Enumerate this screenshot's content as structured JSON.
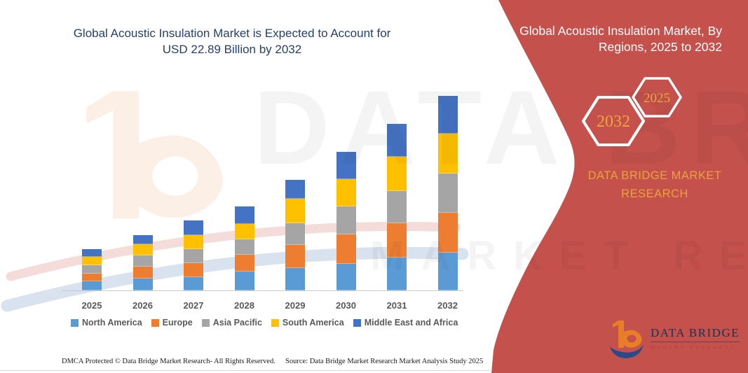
{
  "page": {
    "background": "#ffffff"
  },
  "chart": {
    "title_line1": "Global Acoustic Insulation Market is Expected to Account for",
    "title_line2": "USD 22.89 Billion by 2032",
    "title_color": "#26406C"
  },
  "chart_data": {
    "type": "bar",
    "stacked": true,
    "title": "Global Acoustic Insulation Market is Expected to Account for USD 22.89 Billion by 2032",
    "unit": "USD Billion",
    "xlabel": "",
    "ylabel": "",
    "grid": false,
    "axis_labels_shown": "x-only",
    "legend_position": "bottom",
    "categories": [
      "2025",
      "2026",
      "2027",
      "2028",
      "2029",
      "2030",
      "2031",
      "2032"
    ],
    "series": [
      {
        "name": "North America",
        "color": "#5B9BD5",
        "values": [
          1.04,
          1.4,
          1.57,
          2.23,
          2.64,
          3.11,
          3.88,
          4.49
        ]
      },
      {
        "name": "Europe",
        "color": "#ED7D31",
        "values": [
          0.96,
          1.4,
          1.63,
          2.01,
          2.75,
          3.44,
          3.99,
          4.68
        ]
      },
      {
        "name": "Asia Pacific",
        "color": "#A5A5A5",
        "values": [
          0.96,
          1.3,
          1.65,
          1.79,
          2.48,
          3.3,
          3.86,
          4.63
        ]
      },
      {
        "name": "South America",
        "color": "#FFC000",
        "values": [
          1.02,
          1.35,
          1.65,
          1.79,
          2.89,
          3.25,
          3.99,
          4.63
        ]
      },
      {
        "name": "Middle East and Africa",
        "color": "#4472C4",
        "values": [
          0.91,
          1.08,
          1.73,
          2.07,
          2.26,
          3.22,
          3.91,
          4.46
        ]
      }
    ],
    "totals": [
      4.89,
      6.53,
      8.23,
      9.89,
      13.02,
      16.32,
      19.63,
      22.89
    ],
    "ylim": [
      0,
      24
    ]
  },
  "panel": {
    "background": "#C5514C",
    "title_line1": "Global Acoustic Insulation Market, By",
    "title_line2": "Regions, 2025 to 2032",
    "hex_back_label": "2032",
    "hex_front_label": "2025",
    "hex_text_color": "#EDA63F",
    "brand_line1": "DATA BRIDGE MARKET",
    "brand_line2": "RESEARCH",
    "brand_color": "#E8A33C"
  },
  "logo": {
    "title": "DATA BRIDGE",
    "subtitle": "MARKET RESEARCH",
    "title_color": "#1F3050",
    "subtitle_color": "#B4443E",
    "b_color": "#E87E27",
    "swoosh_color": "#2B4A8B"
  },
  "watermark": {
    "text1": "DATA BRIDGE",
    "text2": "MARKET RESEARCH"
  },
  "footer": {
    "left": "DMCA Protected © Data Bridge Market Research-  All Rights Reserved.",
    "source": "Source: Data Bridge Market Research  Market Analysis Study 2025"
  }
}
